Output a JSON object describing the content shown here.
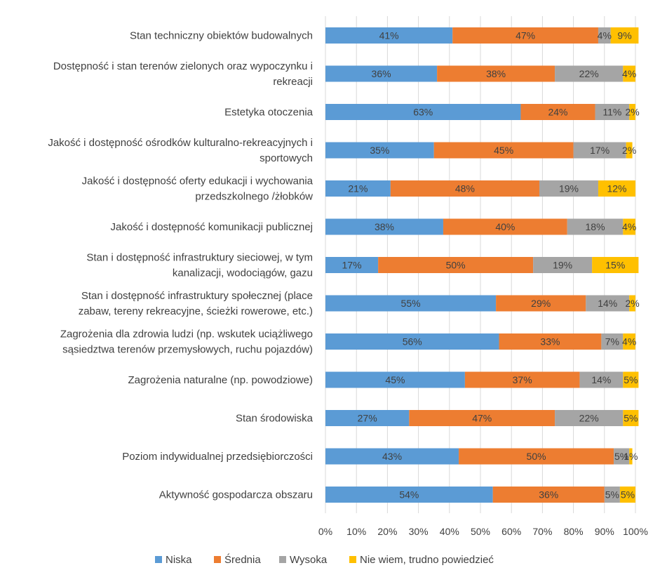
{
  "chart_data": {
    "type": "bar",
    "orientation": "horizontal",
    "stacked": "percent",
    "title": "",
    "xlabel": "",
    "ylabel": "",
    "xlim": [
      0,
      100
    ],
    "x_ticks": [
      "0%",
      "10%",
      "20%",
      "30%",
      "40%",
      "50%",
      "60%",
      "70%",
      "80%",
      "90%",
      "100%"
    ],
    "grid": true,
    "legend_position": "bottom",
    "categories": [
      [
        "Stan techniczny obiektów budowalnych"
      ],
      [
        "Dostępność i stan terenów zielonych oraz wypoczynku i",
        "rekreacji"
      ],
      [
        "Estetyka otoczenia"
      ],
      [
        "Jakość i dostępność ośrodków kulturalno-rekreacyjnych i",
        "sportowych"
      ],
      [
        "Jakość i dostępność oferty edukacji i wychowania",
        "przedszkolnego /żłobków"
      ],
      [
        "Jakość i dostępność komunikacji publicznej"
      ],
      [
        "Stan i dostępność infrastruktury sieciowej, w tym",
        "kanalizacji, wodociągów, gazu"
      ],
      [
        "Stan i dostępność infrastruktury społecznej (place",
        "zabaw, tereny rekreacyjne, ścieżki rowerowe, etc.)"
      ],
      [
        "Zagrożenia dla zdrowia ludzi (np. wskutek uciążliwego",
        "sąsiedztwa terenów przemysłowych, ruchu pojazdów)"
      ],
      [
        "Zagrożenia naturalne (np. powodziowe)"
      ],
      [
        "Stan środowiska"
      ],
      [
        "Poziom indywidualnej przedsiębiorczości"
      ],
      [
        "Aktywność gospodarcza obszaru"
      ]
    ],
    "series": [
      {
        "name": "Niska",
        "color": "#5b9bd5",
        "values": [
          41,
          36,
          63,
          35,
          21,
          38,
          17,
          55,
          56,
          45,
          27,
          43,
          54
        ],
        "labels": [
          "41%",
          "36%",
          "63%",
          "35%",
          "21%",
          "38%",
          "17%",
          "55%",
          "56%",
          "45%",
          "27%",
          "43%",
          "54%"
        ]
      },
      {
        "name": "Średnia",
        "color": "#ed7d31",
        "values": [
          47,
          38,
          24,
          45,
          48,
          40,
          50,
          29,
          33,
          37,
          47,
          50,
          36
        ],
        "labels": [
          "47%",
          "38%",
          "24%",
          "45%",
          "48%",
          "40%",
          "50%",
          "29%",
          "33%",
          "37%",
          "47%",
          "50%",
          "36%"
        ]
      },
      {
        "name": "Wysoka",
        "color": "#a5a5a5",
        "values": [
          4,
          22,
          11,
          17,
          19,
          18,
          19,
          14,
          7,
          14,
          22,
          5,
          5
        ],
        "labels": [
          "4%",
          "22%",
          "11%",
          "17%",
          "19%",
          "18%",
          "19%",
          "14%",
          "7%",
          "14%",
          "22%",
          "5%",
          "5%"
        ]
      },
      {
        "name": "Nie wiem, trudno powiedzieć",
        "color": "#ffc000",
        "values": [
          9,
          4,
          2,
          2,
          12,
          4,
          15,
          2,
          4,
          5,
          5,
          1,
          5
        ],
        "labels": [
          "9%",
          "4%",
          "2%",
          "2%",
          "12%",
          "4%",
          "15%",
          "2%",
          "4%",
          "5%",
          "5%",
          "1%",
          "5%"
        ]
      }
    ]
  }
}
